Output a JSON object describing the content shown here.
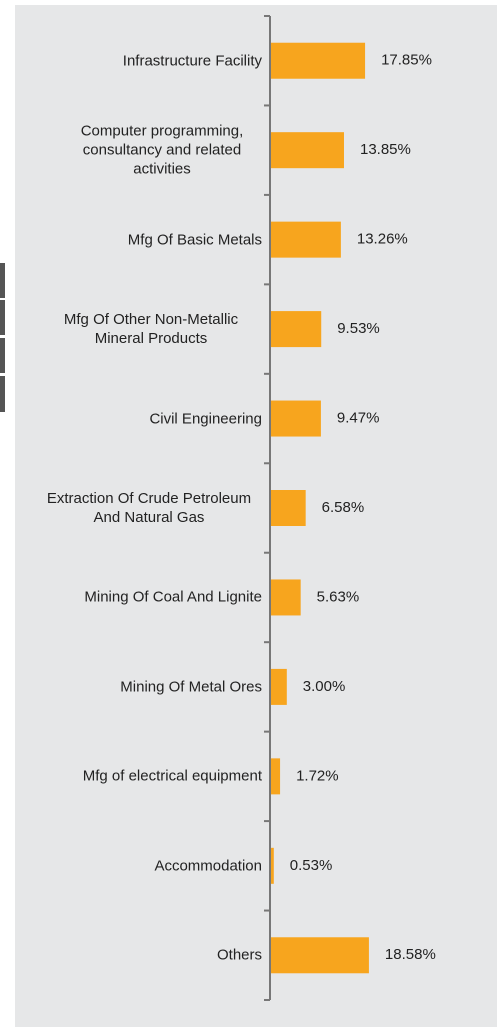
{
  "chart_data": {
    "type": "bar",
    "orientation": "horizontal",
    "color": "#f7a51e",
    "categories": [
      "Infrastructure Facility",
      "Computer programming, consultancy and related activities",
      "Mfg Of Basic Metals",
      "Mfg Of Other Non-Metallic Mineral Products",
      "Civil Engineering",
      "Extraction Of Crude Petroleum And Natural Gas",
      "Mining Of Coal And Lignite",
      "Mining Of Metal Ores",
      "Mfg of electrical equipment",
      "Accommodation",
      "Others"
    ],
    "values": [
      17.85,
      13.85,
      13.26,
      9.53,
      9.47,
      6.58,
      5.63,
      3.0,
      1.72,
      0.53,
      18.58
    ],
    "value_labels": [
      "17.85%",
      "13.85%",
      "13.26%",
      "9.53%",
      "9.47%",
      "6.58%",
      "5.63%",
      "3.00%",
      "1.72%",
      "0.53%",
      "18.58%"
    ]
  }
}
